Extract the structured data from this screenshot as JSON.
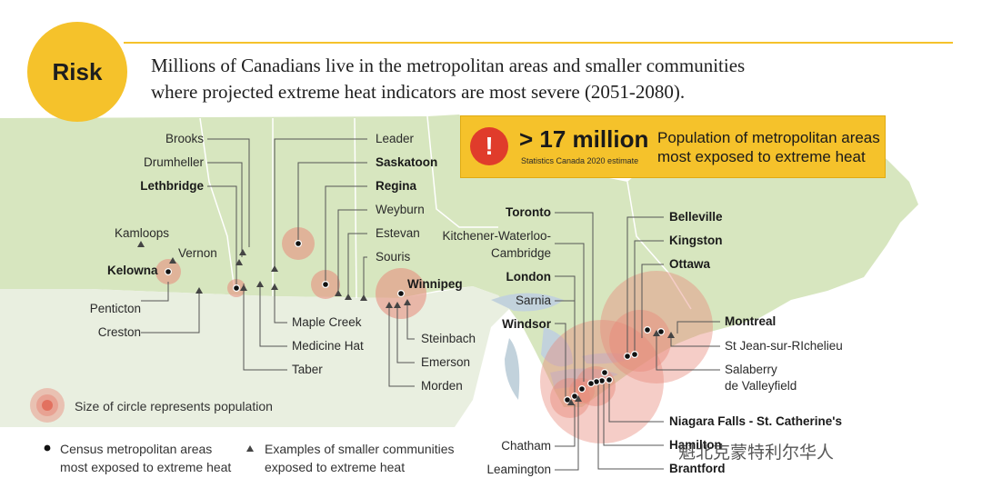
{
  "header": {
    "badge": "Risk",
    "headline_line1": "Millions of Canadians live in the metropolitan areas and smaller communities",
    "headline_line2": "where projected extreme heat indicators are most severe (2051-2080)."
  },
  "callout": {
    "icon": "exclamation-icon",
    "value": "> 17 million",
    "source": "Statistics Canada 2020 estimate",
    "description_line1": "Population of metropolitan areas",
    "description_line2": "most exposed to extreme heat"
  },
  "places": {
    "brooks": "Brooks",
    "drumheller": "Drumheller",
    "lethbridge": "Lethbridge",
    "kamloops": "Kamloops",
    "vernon": "Vernon",
    "kelowna": "Kelowna",
    "penticton": "Penticton",
    "creston": "Creston",
    "leader": "Leader",
    "saskatoon": "Saskatoon",
    "regina": "Regina",
    "weyburn": "Weyburn",
    "estevan": "Estevan",
    "souris": "Souris",
    "winnipeg": "Winnipeg",
    "maple_creek": "Maple Creek",
    "medicine_hat": "Medicine Hat",
    "taber": "Taber",
    "steinbach": "Steinbach",
    "emerson": "Emerson",
    "morden": "Morden",
    "toronto": "Toronto",
    "kitchener_1": "Kitchener-Waterloo-",
    "kitchener_2": "Cambridge",
    "london": "London",
    "sarnia": "Sarnia",
    "windsor": "Windsor",
    "chatham": "Chatham",
    "leamington": "Leamington",
    "belleville": "Belleville",
    "kingston": "Kingston",
    "ottawa": "Ottawa",
    "montreal": "Montreal",
    "st_jean": "St Jean-sur-RIchelieu",
    "salaberry_1": "Salaberry",
    "salaberry_2": "de Valleyfield",
    "niagara": "Niagara Falls - St. Catherine's",
    "hamilton": "Hamilton",
    "brantford": "Brantford"
  },
  "legend": {
    "circle_text": "Size of circle represents population",
    "cma_line1": "Census metropolitan areas",
    "cma_line2": "most exposed to extreme heat",
    "small_line1": "Examples of smaller communities",
    "small_line2": "exposed to extreme heat"
  },
  "colors": {
    "land": "#d7e6bf",
    "water": "#c2d2dc",
    "accent": "#f5c22b",
    "alert": "#e03c2b",
    "circle": "#e8897a"
  },
  "watermark": "魁北克蒙特利尔华人"
}
